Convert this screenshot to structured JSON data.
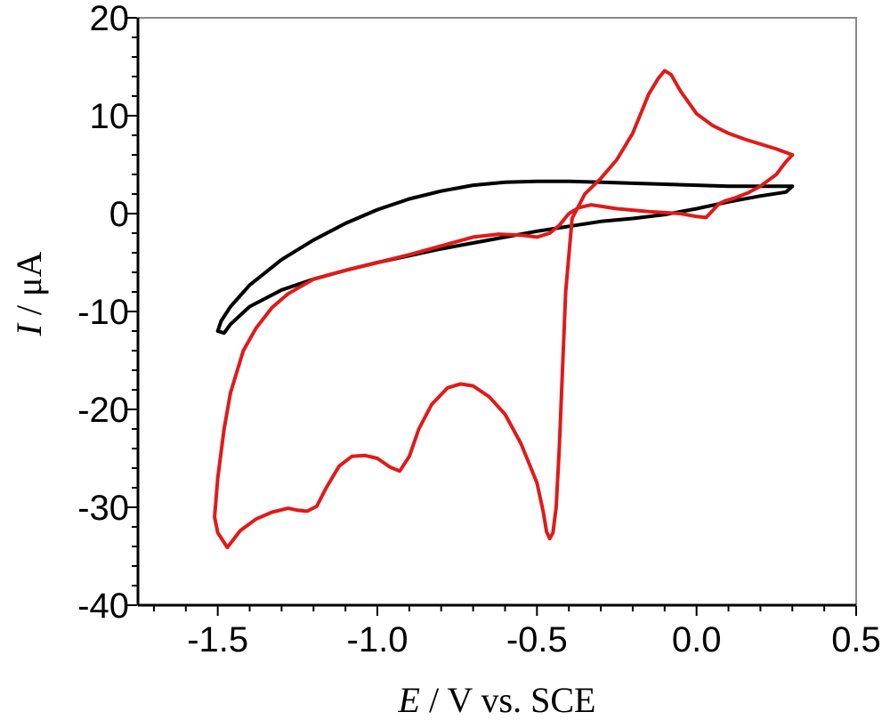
{
  "chart_data": {
    "type": "line",
    "xlabel": {
      "italic": "E",
      "rest": " / V vs. SCE"
    },
    "ylabel": {
      "italic": "I",
      "rest": " / μA"
    },
    "xlim": [
      -1.75,
      0.5
    ],
    "ylim": [
      -40,
      20
    ],
    "x_ticks": [
      -1.5,
      -1.0,
      -0.5,
      0.0,
      0.5
    ],
    "x_tick_labels": [
      "-1.5",
      "-1.0",
      "-0.5",
      "0.0",
      "0.5"
    ],
    "y_ticks": [
      -40,
      -30,
      -20,
      -10,
      0,
      10,
      20
    ],
    "y_tick_labels": [
      "-40",
      "-30",
      "-20",
      "-10",
      "0",
      "10",
      "20"
    ],
    "grid": false,
    "series": [
      {
        "color": "#000000",
        "points": [
          [
            0.3,
            2.8
          ],
          [
            0.28,
            2.2
          ],
          [
            0.2,
            1.8
          ],
          [
            0.1,
            1.2
          ],
          [
            0.0,
            0.5
          ],
          [
            -0.1,
            -0.1
          ],
          [
            -0.2,
            -0.5
          ],
          [
            -0.3,
            -0.8
          ],
          [
            -0.4,
            -1.3
          ],
          [
            -0.5,
            -1.8
          ],
          [
            -0.6,
            -2.4
          ],
          [
            -0.7,
            -3.0
          ],
          [
            -0.8,
            -3.6
          ],
          [
            -0.9,
            -4.3
          ],
          [
            -1.0,
            -5.0
          ],
          [
            -1.1,
            -5.8
          ],
          [
            -1.2,
            -6.7
          ],
          [
            -1.3,
            -7.8
          ],
          [
            -1.4,
            -9.5
          ],
          [
            -1.46,
            -11.3
          ],
          [
            -1.48,
            -12.2
          ],
          [
            -1.5,
            -12.0
          ],
          [
            -1.49,
            -11.0
          ],
          [
            -1.46,
            -9.5
          ],
          [
            -1.4,
            -7.3
          ],
          [
            -1.3,
            -4.7
          ],
          [
            -1.2,
            -2.7
          ],
          [
            -1.1,
            -1.0
          ],
          [
            -1.0,
            0.4
          ],
          [
            -0.9,
            1.5
          ],
          [
            -0.8,
            2.3
          ],
          [
            -0.7,
            2.9
          ],
          [
            -0.6,
            3.2
          ],
          [
            -0.5,
            3.3
          ],
          [
            -0.4,
            3.3
          ],
          [
            -0.3,
            3.2
          ],
          [
            -0.2,
            3.1
          ],
          [
            -0.1,
            3.0
          ],
          [
            0.0,
            2.9
          ],
          [
            0.1,
            2.8
          ],
          [
            0.2,
            2.8
          ],
          [
            0.3,
            2.8
          ]
        ]
      },
      {
        "color": "#e01a1a",
        "points": [
          [
            0.3,
            6.0
          ],
          [
            0.25,
            6.6
          ],
          [
            0.2,
            7.1
          ],
          [
            0.15,
            7.6
          ],
          [
            0.1,
            8.2
          ],
          [
            0.05,
            9.0
          ],
          [
            0.0,
            10.2
          ],
          [
            -0.05,
            12.5
          ],
          [
            -0.08,
            14.2
          ],
          [
            -0.1,
            14.6
          ],
          [
            -0.12,
            13.8
          ],
          [
            -0.15,
            12.2
          ],
          [
            -0.2,
            8.2
          ],
          [
            -0.25,
            5.5
          ],
          [
            -0.3,
            3.6
          ],
          [
            -0.35,
            2.0
          ],
          [
            -0.39,
            -0.5
          ],
          [
            -0.41,
            -8.0
          ],
          [
            -0.42,
            -16.0
          ],
          [
            -0.43,
            -24.0
          ],
          [
            -0.44,
            -30.0
          ],
          [
            -0.45,
            -32.6
          ],
          [
            -0.46,
            -33.2
          ],
          [
            -0.47,
            -32.5
          ],
          [
            -0.48,
            -30.5
          ],
          [
            -0.5,
            -27.5
          ],
          [
            -0.55,
            -23.5
          ],
          [
            -0.6,
            -20.5
          ],
          [
            -0.65,
            -18.7
          ],
          [
            -0.7,
            -17.6
          ],
          [
            -0.74,
            -17.4
          ],
          [
            -0.78,
            -17.8
          ],
          [
            -0.83,
            -19.5
          ],
          [
            -0.87,
            -22.0
          ],
          [
            -0.9,
            -24.8
          ],
          [
            -0.93,
            -26.3
          ],
          [
            -0.96,
            -25.9
          ],
          [
            -1.0,
            -25.0
          ],
          [
            -1.04,
            -24.7
          ],
          [
            -1.08,
            -24.8
          ],
          [
            -1.12,
            -25.8
          ],
          [
            -1.16,
            -28.0
          ],
          [
            -1.19,
            -29.9
          ],
          [
            -1.22,
            -30.4
          ],
          [
            -1.25,
            -30.3
          ],
          [
            -1.28,
            -30.1
          ],
          [
            -1.33,
            -30.5
          ],
          [
            -1.38,
            -31.2
          ],
          [
            -1.43,
            -32.4
          ],
          [
            -1.47,
            -34.1
          ],
          [
            -1.5,
            -32.6
          ],
          [
            -1.51,
            -31.0
          ],
          [
            -1.5,
            -27.0
          ],
          [
            -1.48,
            -22.0
          ],
          [
            -1.46,
            -18.3
          ],
          [
            -1.42,
            -14.0
          ],
          [
            -1.38,
            -11.7
          ],
          [
            -1.33,
            -9.6
          ],
          [
            -1.28,
            -8.2
          ],
          [
            -1.2,
            -6.7
          ],
          [
            -1.1,
            -5.8
          ],
          [
            -1.0,
            -5.0
          ],
          [
            -0.9,
            -4.2
          ],
          [
            -0.8,
            -3.3
          ],
          [
            -0.7,
            -2.4
          ],
          [
            -0.62,
            -2.1
          ],
          [
            -0.55,
            -2.2
          ],
          [
            -0.5,
            -2.4
          ],
          [
            -0.46,
            -2.0
          ],
          [
            -0.43,
            -1.2
          ],
          [
            -0.4,
            0.0
          ],
          [
            -0.37,
            0.6
          ],
          [
            -0.33,
            0.9
          ],
          [
            -0.25,
            0.5
          ],
          [
            -0.15,
            0.2
          ],
          [
            -0.05,
            0.0
          ],
          [
            0.0,
            -0.3
          ],
          [
            0.03,
            -0.4
          ],
          [
            0.05,
            0.3
          ],
          [
            0.07,
            1.0
          ],
          [
            0.09,
            1.3
          ],
          [
            0.12,
            1.6
          ],
          [
            0.16,
            2.1
          ],
          [
            0.2,
            2.8
          ],
          [
            0.25,
            4.0
          ],
          [
            0.28,
            5.3
          ],
          [
            0.3,
            6.0
          ]
        ]
      }
    ]
  }
}
